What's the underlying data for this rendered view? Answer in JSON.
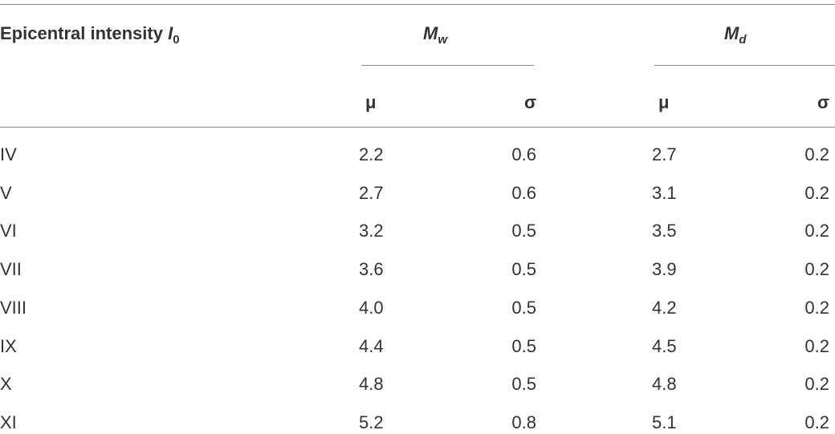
{
  "header": {
    "first": {
      "text": "Epicentral intensity",
      "symbol": "I",
      "subscript": "0"
    },
    "groups": [
      {
        "symbol": "M",
        "subscript": "w"
      },
      {
        "symbol": "M",
        "subscript": "d"
      }
    ],
    "subheaders": [
      "μ",
      "σ",
      "μ",
      "σ"
    ]
  },
  "table": {
    "rows": [
      [
        "IV",
        "2.2",
        "0.6",
        "2.7",
        "0.2"
      ],
      [
        "V",
        "2.7",
        "0.6",
        "3.1",
        "0.2"
      ],
      [
        "VI",
        "3.2",
        "0.5",
        "3.5",
        "0.2"
      ],
      [
        "VII",
        "3.6",
        "0.5",
        "3.9",
        "0.2"
      ],
      [
        "VIII",
        "4.0",
        "0.5",
        "4.2",
        "0.2"
      ],
      [
        "IX",
        "4.4",
        "0.5",
        "4.5",
        "0.2"
      ],
      [
        "X",
        "4.8",
        "0.5",
        "4.8",
        "0.2"
      ],
      [
        "XI",
        "5.2",
        "0.8",
        "5.1",
        "0.2"
      ]
    ]
  }
}
